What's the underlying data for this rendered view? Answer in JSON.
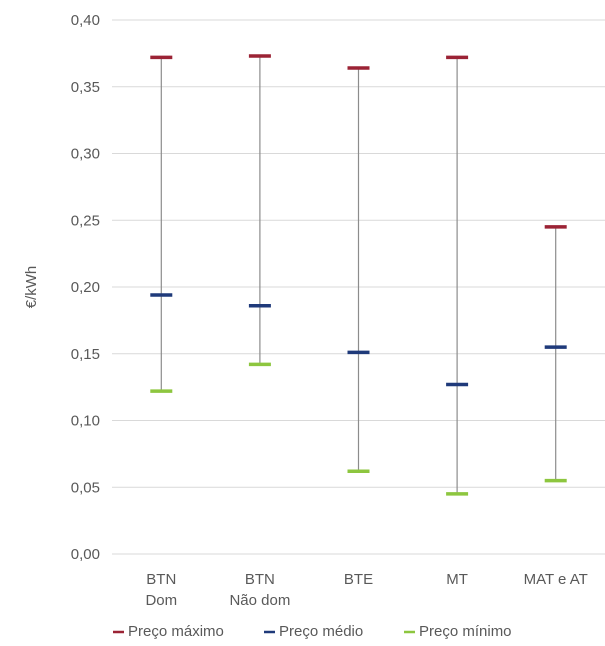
{
  "chart_data": {
    "type": "high-low",
    "title": "",
    "ylabel": "€/kWh",
    "ylim": [
      0,
      0.4
    ],
    "yticks": [
      "0,00",
      "0,05",
      "0,10",
      "0,15",
      "0,20",
      "0,25",
      "0,30",
      "0,35",
      "0,40"
    ],
    "categories": [
      [
        "BTN",
        "Dom"
      ],
      [
        "BTN",
        "Não dom"
      ],
      [
        "BTE"
      ],
      [
        "MT"
      ],
      [
        "MAT e AT"
      ]
    ],
    "series": [
      {
        "name": "Preço máximo",
        "color": "#9B2335",
        "values": [
          0.372,
          0.373,
          0.364,
          0.372,
          0.245
        ]
      },
      {
        "name": "Preço médio",
        "color": "#1F3A7A",
        "values": [
          0.194,
          0.186,
          0.151,
          0.127,
          0.155
        ]
      },
      {
        "name": "Preço mínimo",
        "color": "#8DC63F",
        "values": [
          0.122,
          0.142,
          0.062,
          0.045,
          0.055
        ]
      }
    ],
    "grid": true,
    "legend_position": "bottom"
  }
}
